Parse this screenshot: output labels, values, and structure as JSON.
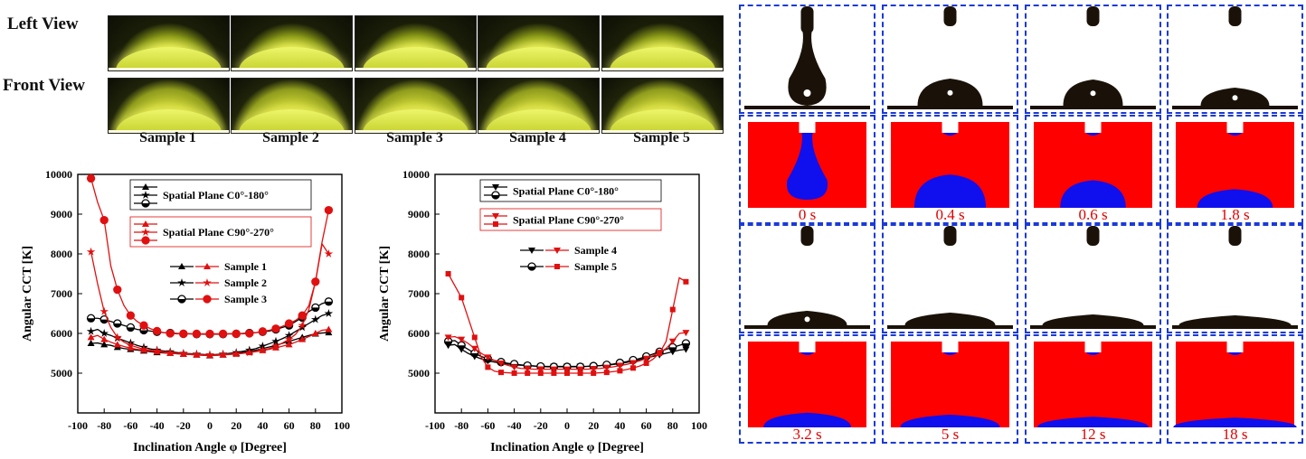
{
  "row_labels": {
    "left": "Left View",
    "front": "Front View"
  },
  "samples": [
    "Sample 1",
    "Sample 2",
    "Sample 3",
    "Sample 4",
    "Sample 5"
  ],
  "colors": {
    "black_series": "#000000",
    "red_series": "#e01010",
    "frame": "#1a3ad8",
    "sim_bg": "#ff0000",
    "sim_drop": "#1010ee"
  },
  "chart_data": [
    {
      "type": "line",
      "xlabel": "Inclination Angle φ [Degree]",
      "ylabel": "Angular CCT [K]",
      "xlim": [
        -100,
        100
      ],
      "ylim": [
        4000,
        10000
      ],
      "xticks": [
        -100,
        -80,
        -60,
        -40,
        -20,
        0,
        20,
        40,
        60,
        80,
        100
      ],
      "yticks": [
        5000,
        6000,
        7000,
        8000,
        9000,
        10000
      ],
      "legend_headers": [
        "Spatial Plane C0°-180°",
        "Spatial Plane C90°-270°"
      ],
      "legend_samples": [
        "Sample 1",
        "Sample 2",
        "Sample 3"
      ],
      "legend_placement": "top-center",
      "x": [
        -90,
        -85,
        -80,
        -75,
        -70,
        -65,
        -60,
        -55,
        -50,
        -45,
        -40,
        -35,
        -30,
        -25,
        -20,
        -15,
        -10,
        -5,
        0,
        5,
        10,
        15,
        20,
        25,
        30,
        35,
        40,
        45,
        50,
        55,
        60,
        65,
        70,
        75,
        80,
        85,
        90
      ],
      "series": [
        {
          "name": "Sample 1",
          "plane": "C0°-180°",
          "color": "#000000",
          "marker": "triangle",
          "values": [
            5750,
            5760,
            5720,
            5700,
            5650,
            5620,
            5600,
            5580,
            5560,
            5540,
            5520,
            5510,
            5500,
            5490,
            5480,
            5470,
            5460,
            5450,
            5440,
            5450,
            5460,
            5480,
            5500,
            5520,
            5550,
            5580,
            5620,
            5660,
            5700,
            5750,
            5800,
            5850,
            5900,
            5950,
            5990,
            6010,
            6020
          ]
        },
        {
          "name": "Sample 2",
          "plane": "C0°-180°",
          "color": "#000000",
          "marker": "star",
          "values": [
            6050,
            6100,
            6000,
            5950,
            5880,
            5820,
            5760,
            5700,
            5650,
            5610,
            5580,
            5560,
            5540,
            5520,
            5500,
            5490,
            5480,
            5470,
            5460,
            5470,
            5480,
            5500,
            5520,
            5550,
            5580,
            5620,
            5680,
            5740,
            5800,
            5870,
            5950,
            6050,
            6150,
            6250,
            6350,
            6450,
            6500
          ]
        },
        {
          "name": "Sample 3",
          "plane": "C0°-180°",
          "color": "#000000",
          "marker": "half-circle",
          "values": [
            6380,
            6380,
            6350,
            6300,
            6250,
            6200,
            6150,
            6100,
            6080,
            6060,
            6040,
            6020,
            6010,
            6000,
            5990,
            5990,
            5980,
            5980,
            5980,
            5980,
            5980,
            5990,
            5990,
            6000,
            6010,
            6020,
            6040,
            6060,
            6100,
            6150,
            6200,
            6300,
            6400,
            6550,
            6650,
            6750,
            6800
          ]
        },
        {
          "name": "Sample 1",
          "plane": "C90°-270°",
          "color": "#e01010",
          "marker": "triangle",
          "values": [
            5900,
            5950,
            5850,
            5780,
            5720,
            5670,
            5630,
            5600,
            5580,
            5560,
            5540,
            5520,
            5500,
            5490,
            5480,
            5470,
            5460,
            5450,
            5450,
            5450,
            5460,
            5470,
            5480,
            5500,
            5520,
            5540,
            5570,
            5600,
            5640,
            5680,
            5720,
            5780,
            5850,
            5920,
            6000,
            6080,
            6100
          ]
        },
        {
          "name": "Sample 2",
          "plane": "C90°-270°",
          "color": "#e01010",
          "marker": "star",
          "values": [
            8050,
            7250,
            6550,
            6150,
            5900,
            5780,
            5700,
            5650,
            5600,
            5580,
            5560,
            5540,
            5520,
            5500,
            5490,
            5480,
            5470,
            5460,
            5460,
            5460,
            5470,
            5480,
            5490,
            5500,
            5520,
            5550,
            5580,
            5620,
            5680,
            5760,
            5850,
            5980,
            6200,
            6600,
            7300,
            8250,
            8000
          ]
        },
        {
          "name": "Sample 3",
          "plane": "C90°-270°",
          "color": "#e01010",
          "marker": "circle",
          "values": [
            9900,
            9300,
            8850,
            7700,
            7100,
            6700,
            6450,
            6300,
            6200,
            6120,
            6060,
            6020,
            6000,
            5990,
            5990,
            5990,
            5990,
            5990,
            5990,
            5990,
            5990,
            5990,
            5990,
            5990,
            6000,
            6020,
            6050,
            6080,
            6120,
            6180,
            6250,
            6330,
            6450,
            6700,
            7300,
            8300,
            9100
          ]
        }
      ]
    },
    {
      "type": "line",
      "xlabel": "Inclination Angle φ [Degree]",
      "ylabel": "Angular CCT [K]",
      "xlim": [
        -100,
        100
      ],
      "ylim": [
        4000,
        10000
      ],
      "xticks": [
        -100,
        -80,
        -60,
        -40,
        -20,
        0,
        20,
        40,
        60,
        80,
        100
      ],
      "yticks": [
        5000,
        6000,
        7000,
        8000,
        9000,
        10000
      ],
      "legend_headers": [
        "Spatial Plane C0°-180°",
        "Spatial Plane C90°-270°"
      ],
      "legend_samples": [
        "Sample 4",
        "Sample 5"
      ],
      "legend_placement": "top-center",
      "x": [
        -90,
        -85,
        -80,
        -75,
        -70,
        -65,
        -60,
        -55,
        -50,
        -45,
        -40,
        -35,
        -30,
        -25,
        -20,
        -15,
        -10,
        -5,
        0,
        5,
        10,
        15,
        20,
        25,
        30,
        35,
        40,
        45,
        50,
        55,
        60,
        65,
        70,
        75,
        80,
        85,
        90
      ],
      "series": [
        {
          "name": "Sample 4",
          "plane": "C0°-180°",
          "color": "#000000",
          "marker": "triangle-down",
          "values": [
            5700,
            5720,
            5600,
            5500,
            5420,
            5360,
            5310,
            5280,
            5250,
            5230,
            5210,
            5200,
            5190,
            5180,
            5170,
            5170,
            5170,
            5170,
            5170,
            5170,
            5170,
            5170,
            5180,
            5190,
            5200,
            5220,
            5240,
            5270,
            5300,
            5340,
            5380,
            5420,
            5460,
            5500,
            5540,
            5580,
            5600
          ]
        },
        {
          "name": "Sample 5",
          "plane": "C0°-180°",
          "color": "#000000",
          "marker": "half-circle",
          "values": [
            5800,
            5820,
            5700,
            5600,
            5500,
            5420,
            5360,
            5320,
            5280,
            5250,
            5230,
            5210,
            5190,
            5180,
            5170,
            5160,
            5160,
            5160,
            5160,
            5160,
            5160,
            5170,
            5180,
            5190,
            5210,
            5230,
            5260,
            5290,
            5330,
            5370,
            5420,
            5480,
            5540,
            5600,
            5650,
            5700,
            5750
          ]
        },
        {
          "name": "Sample 4",
          "plane": "C90°-270°",
          "color": "#e01010",
          "marker": "triangle-down",
          "values": [
            5900,
            5920,
            5850,
            5750,
            5620,
            5500,
            5400,
            5320,
            5250,
            5200,
            5150,
            5120,
            5110,
            5100,
            5100,
            5100,
            5100,
            5100,
            5100,
            5100,
            5100,
            5100,
            5110,
            5120,
            5140,
            5160,
            5190,
            5220,
            5260,
            5310,
            5370,
            5440,
            5520,
            5620,
            5800,
            6000,
            6020
          ]
        },
        {
          "name": "Sample 5",
          "plane": "C90°-270°",
          "color": "#e01010",
          "marker": "square",
          "values": [
            7500,
            7200,
            6900,
            6400,
            5900,
            5400,
            5150,
            5050,
            5020,
            5010,
            5000,
            5000,
            5000,
            5000,
            5000,
            5000,
            5000,
            5000,
            5000,
            5000,
            5000,
            5000,
            5000,
            5010,
            5020,
            5040,
            5060,
            5090,
            5130,
            5180,
            5250,
            5350,
            5500,
            5800,
            6600,
            7400,
            7300
          ]
        }
      ]
    }
  ],
  "time_labels": [
    "0 s",
    "0.4 s",
    "0.6 s",
    "1.8 s",
    "3.2 s",
    "5 s",
    "12 s",
    "18 s"
  ]
}
